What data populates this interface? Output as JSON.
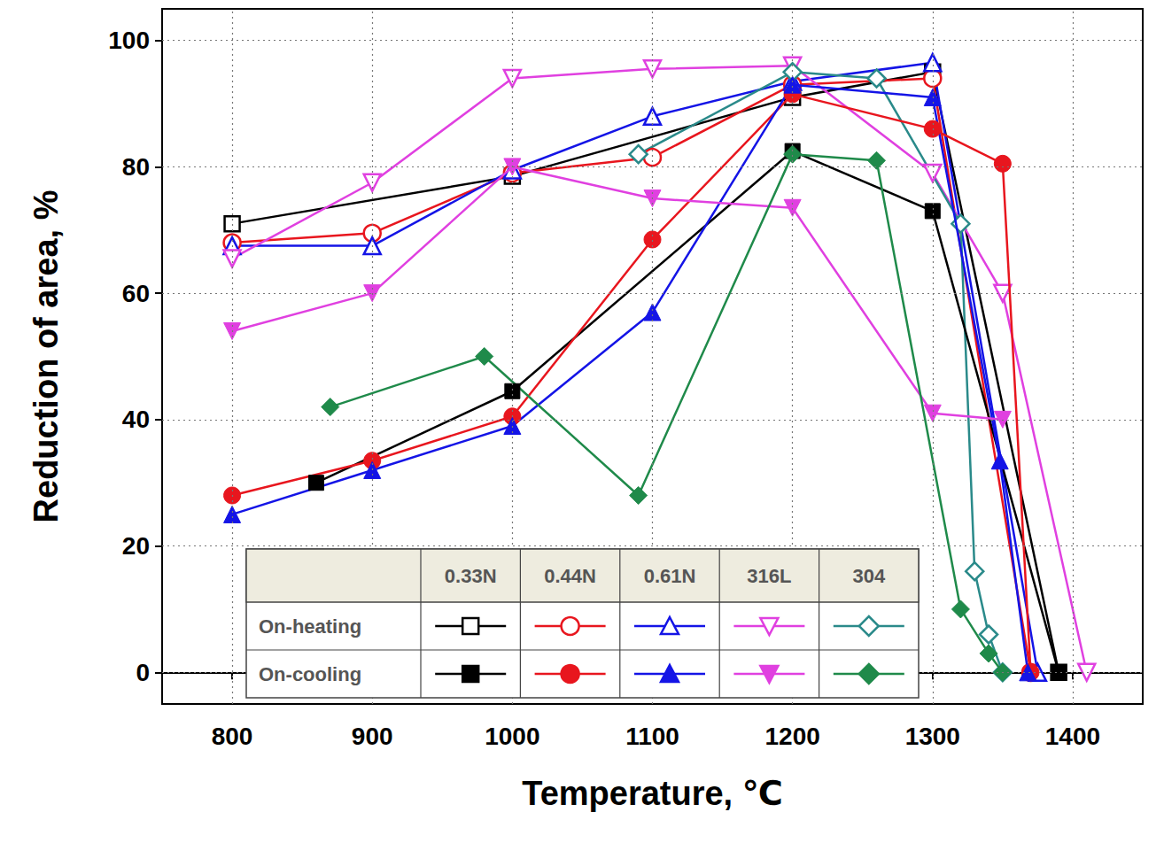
{
  "chart_data": {
    "type": "line",
    "x_label": "Temperature, ℃",
    "y_label": "Reduction of area, %",
    "xlim": [
      750,
      1450
    ],
    "xticks": [
      800,
      900,
      1000,
      1100,
      1200,
      1300,
      1400
    ],
    "ylim": [
      -5,
      105
    ],
    "yticks": [
      0,
      20,
      40,
      60,
      80,
      100
    ],
    "grid": true,
    "legend_table": {
      "columns": [
        "0.33N",
        "0.44N",
        "0.61N",
        "316L",
        "304"
      ],
      "rows": [
        "On-heating",
        "On-cooling"
      ]
    },
    "series": [
      {
        "name": "0.33N",
        "condition": "On-heating",
        "color": "#000000",
        "marker": "open square",
        "x": [
          800,
          1000,
          1200,
          1300,
          1390
        ],
        "values": [
          71,
          78.5,
          91,
          95,
          0
        ]
      },
      {
        "name": "0.33N",
        "condition": "On-cooling",
        "color": "#000000",
        "marker": "filled square",
        "x": [
          860,
          1000,
          1200,
          1300,
          1390
        ],
        "values": [
          30,
          44.5,
          82.5,
          73,
          0
        ]
      },
      {
        "name": "0.44N",
        "condition": "On-heating",
        "color": "#e8161e",
        "marker": "open circle",
        "x": [
          800,
          900,
          1000,
          1100,
          1200,
          1300,
          1370
        ],
        "values": [
          68,
          69.5,
          79,
          81.5,
          93,
          94,
          0
        ]
      },
      {
        "name": "0.44N",
        "condition": "On-cooling",
        "color": "#e8161e",
        "marker": "filled circle",
        "x": [
          800,
          900,
          1000,
          1100,
          1200,
          1300,
          1350,
          1370
        ],
        "values": [
          28,
          33.5,
          40.5,
          68.5,
          91.5,
          86,
          80.5,
          0
        ]
      },
      {
        "name": "0.61N",
        "condition": "On-heating",
        "color": "#1414e6",
        "marker": "open triangle",
        "x": [
          800,
          900,
          1000,
          1100,
          1200,
          1300,
          1375
        ],
        "values": [
          67.5,
          67.5,
          79.5,
          88,
          93.5,
          96.5,
          0
        ]
      },
      {
        "name": "0.61N",
        "condition": "On-cooling",
        "color": "#1414e6",
        "marker": "filled triangle",
        "x": [
          800,
          900,
          1000,
          1100,
          1200,
          1300,
          1348,
          1368
        ],
        "values": [
          25,
          32,
          39,
          57,
          93,
          91,
          33.5,
          0
        ]
      },
      {
        "name": "316L",
        "condition": "On-heating",
        "color": "#e040e0",
        "marker": "open triangle-down",
        "x": [
          800,
          900,
          1000,
          1100,
          1200,
          1300,
          1350,
          1410
        ],
        "values": [
          65.5,
          77.5,
          94,
          95.5,
          96,
          79,
          60,
          0
        ]
      },
      {
        "name": "316L",
        "condition": "On-cooling",
        "color": "#e040e0",
        "marker": "filled triangle-down",
        "x": [
          800,
          900,
          1000,
          1100,
          1200,
          1300,
          1350
        ],
        "values": [
          54,
          60,
          80,
          75,
          73.5,
          41,
          40
        ]
      },
      {
        "name": "304",
        "condition": "On-heating",
        "color": "#2a8a8a",
        "marker": "open diamond",
        "x": [
          1090,
          1200,
          1260,
          1320,
          1330,
          1340,
          1350
        ],
        "values": [
          82,
          95,
          94,
          71,
          16,
          6,
          0
        ]
      },
      {
        "name": "304",
        "condition": "On-cooling",
        "color": "#1f8a4a",
        "marker": "filled diamond",
        "x": [
          870,
          980,
          1090,
          1200,
          1260,
          1320,
          1340,
          1350
        ],
        "values": [
          42,
          50,
          28,
          82,
          81,
          10,
          3,
          0
        ]
      }
    ]
  }
}
